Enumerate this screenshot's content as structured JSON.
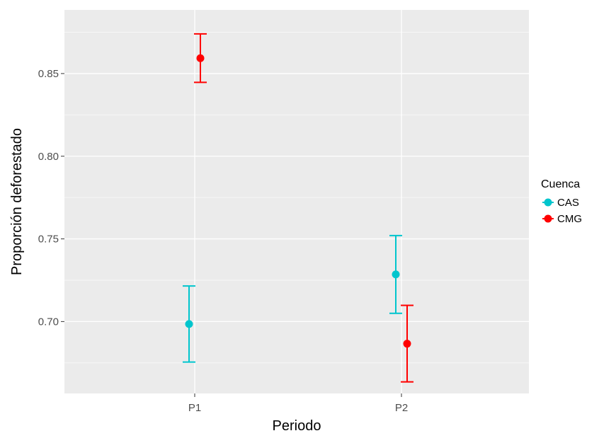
{
  "chart_data": {
    "type": "scatter",
    "title": "",
    "xlabel": "Periodo",
    "ylabel": "Proporción deforestado",
    "categories": [
      "P1",
      "P2"
    ],
    "ylim": [
      0.6565,
      0.8885
    ],
    "yticks": [
      0.7,
      0.75,
      0.8,
      0.85
    ],
    "ytick_labels": [
      "0.70",
      "0.75",
      "0.80",
      "0.85"
    ],
    "grid": true,
    "legend": {
      "title": "Cuenca",
      "placement": "right"
    },
    "series": [
      {
        "name": "CAS",
        "color": "#00c5cd",
        "points": [
          {
            "x": "P1",
            "y": 0.6985,
            "ymin": 0.6755,
            "ymax": 0.7215
          },
          {
            "x": "P2",
            "y": 0.7285,
            "ymin": 0.705,
            "ymax": 0.752
          }
        ]
      },
      {
        "name": "CMG",
        "color": "#ff0000",
        "points": [
          {
            "x": "P1",
            "y": 0.8593,
            "ymin": 0.8447,
            "ymax": 0.874
          },
          {
            "x": "P2",
            "y": 0.6866,
            "ymin": 0.6635,
            "ymax": 0.7098
          }
        ]
      }
    ]
  }
}
